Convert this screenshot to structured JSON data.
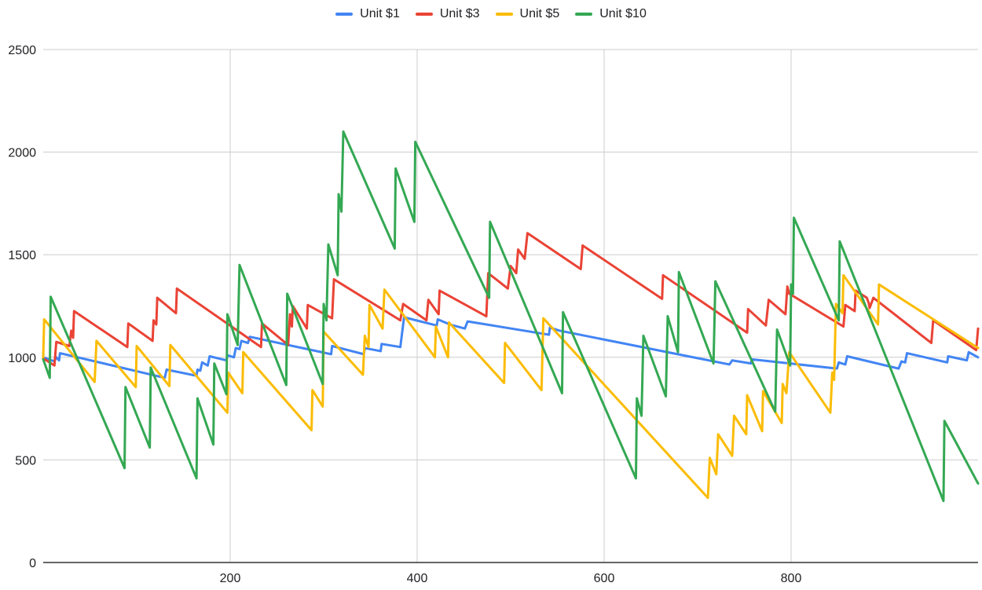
{
  "chart_data": {
    "type": "line",
    "title": "",
    "xlabel": "",
    "ylabel": "",
    "xlim": [
      0,
      1000
    ],
    "ylim": [
      0,
      2500
    ],
    "xticks": [
      200,
      400,
      600,
      800
    ],
    "yticks": [
      0,
      500,
      1000,
      1500,
      2000,
      2500
    ],
    "x_grid": true,
    "y_grid": true,
    "legend_position": "top",
    "series": [
      {
        "name": "Unit $1",
        "color": "#4285F4",
        "points": [
          [
            0,
            1000
          ],
          [
            12,
            980
          ],
          [
            14,
            1000
          ],
          [
            17,
            985
          ],
          [
            18,
            1020
          ],
          [
            130,
            900
          ],
          [
            132,
            940
          ],
          [
            164,
            910
          ],
          [
            165,
            940
          ],
          [
            168,
            935
          ],
          [
            170,
            975
          ],
          [
            176,
            960
          ],
          [
            178,
            1005
          ],
          [
            196,
            985
          ],
          [
            197,
            1010
          ],
          [
            204,
            1000
          ],
          [
            206,
            1045
          ],
          [
            210,
            1040
          ],
          [
            212,
            1080
          ],
          [
            219,
            1070
          ],
          [
            221,
            1100
          ],
          [
            308,
            1015
          ],
          [
            309,
            1055
          ],
          [
            343,
            1015
          ],
          [
            344,
            1045
          ],
          [
            361,
            1030
          ],
          [
            362,
            1065
          ],
          [
            382,
            1050
          ],
          [
            386,
            1195
          ],
          [
            421,
            1155
          ],
          [
            422,
            1185
          ],
          [
            435,
            1160
          ],
          [
            451,
            1140
          ],
          [
            454,
            1175
          ],
          [
            541,
            1110
          ],
          [
            542,
            1145
          ],
          [
            552,
            1130
          ],
          [
            734,
            965
          ],
          [
            737,
            985
          ],
          [
            757,
            970
          ],
          [
            758,
            990
          ],
          [
            849,
            945
          ],
          [
            851,
            975
          ],
          [
            858,
            965
          ],
          [
            860,
            1005
          ],
          [
            915,
            945
          ],
          [
            918,
            980
          ],
          [
            922,
            975
          ],
          [
            924,
            1020
          ],
          [
            967,
            975
          ],
          [
            968,
            1005
          ],
          [
            988,
            985
          ],
          [
            990,
            1025
          ],
          [
            1000,
            1000
          ]
        ]
      },
      {
        "name": "Unit $3",
        "color": "#EA4335",
        "points": [
          [
            0,
            995
          ],
          [
            12,
            960
          ],
          [
            14,
            1075
          ],
          [
            28,
            1055
          ],
          [
            30,
            1130
          ],
          [
            32,
            1095
          ],
          [
            33,
            1225
          ],
          [
            90,
            1050
          ],
          [
            91,
            1165
          ],
          [
            117,
            1080
          ],
          [
            118,
            1180
          ],
          [
            121,
            1160
          ],
          [
            122,
            1290
          ],
          [
            142,
            1215
          ],
          [
            143,
            1335
          ],
          [
            233,
            1050
          ],
          [
            234,
            1165
          ],
          [
            262,
            1060
          ],
          [
            264,
            1210
          ],
          [
            266,
            1150
          ],
          [
            267,
            1250
          ],
          [
            282,
            1140
          ],
          [
            283,
            1255
          ],
          [
            309,
            1190
          ],
          [
            311,
            1380
          ],
          [
            382,
            1180
          ],
          [
            385,
            1260
          ],
          [
            410,
            1180
          ],
          [
            412,
            1280
          ],
          [
            423,
            1210
          ],
          [
            424,
            1325
          ],
          [
            474,
            1200
          ],
          [
            476,
            1410
          ],
          [
            497,
            1335
          ],
          [
            500,
            1445
          ],
          [
            506,
            1410
          ],
          [
            508,
            1525
          ],
          [
            515,
            1480
          ],
          [
            518,
            1605
          ],
          [
            575,
            1430
          ],
          [
            577,
            1545
          ],
          [
            662,
            1285
          ],
          [
            663,
            1400
          ],
          [
            753,
            1120
          ],
          [
            754,
            1235
          ],
          [
            773,
            1155
          ],
          [
            776,
            1280
          ],
          [
            794,
            1210
          ],
          [
            796,
            1345
          ],
          [
            798,
            1310
          ],
          [
            856,
            1150
          ],
          [
            858,
            1255
          ],
          [
            868,
            1225
          ],
          [
            869,
            1325
          ],
          [
            881,
            1290
          ],
          [
            883,
            1265
          ],
          [
            884,
            1240
          ],
          [
            888,
            1290
          ],
          [
            950,
            1070
          ],
          [
            952,
            1180
          ],
          [
            998,
            1035
          ],
          [
            1000,
            1140
          ]
        ]
      },
      {
        "name": "Unit $5",
        "color": "#FBBC04",
        "points": [
          [
            0,
            1000
          ],
          [
            1,
            1185
          ],
          [
            55,
            880
          ],
          [
            57,
            1080
          ],
          [
            99,
            855
          ],
          [
            100,
            1055
          ],
          [
            135,
            860
          ],
          [
            136,
            1060
          ],
          [
            197,
            730
          ],
          [
            198,
            925
          ],
          [
            213,
            825
          ],
          [
            214,
            1025
          ],
          [
            287,
            645
          ],
          [
            288,
            840
          ],
          [
            299,
            760
          ],
          [
            300,
            1125
          ],
          [
            342,
            915
          ],
          [
            344,
            1105
          ],
          [
            348,
            1050
          ],
          [
            349,
            1255
          ],
          [
            363,
            1140
          ],
          [
            365,
            1330
          ],
          [
            419,
            1000
          ],
          [
            420,
            1150
          ],
          [
            433,
            1000
          ],
          [
            434,
            1170
          ],
          [
            493,
            875
          ],
          [
            494,
            1070
          ],
          [
            533,
            840
          ],
          [
            535,
            1190
          ],
          [
            711,
            315
          ],
          [
            713,
            510
          ],
          [
            720,
            430
          ],
          [
            722,
            625
          ],
          [
            737,
            520
          ],
          [
            739,
            715
          ],
          [
            752,
            625
          ],
          [
            753,
            815
          ],
          [
            769,
            640
          ],
          [
            770,
            835
          ],
          [
            790,
            680
          ],
          [
            791,
            870
          ],
          [
            795,
            825
          ],
          [
            798,
            1025
          ],
          [
            842,
            730
          ],
          [
            844,
            925
          ],
          [
            846,
            890
          ],
          [
            848,
            1260
          ],
          [
            855,
            1215
          ],
          [
            856,
            1400
          ],
          [
            893,
            1160
          ],
          [
            894,
            1355
          ],
          [
            1000,
            1045
          ]
        ]
      },
      {
        "name": "Unit $10",
        "color": "#34A853",
        "points": [
          [
            0,
            990
          ],
          [
            7,
            900
          ],
          [
            8,
            1295
          ],
          [
            87,
            460
          ],
          [
            88,
            855
          ],
          [
            114,
            560
          ],
          [
            115,
            950
          ],
          [
            164,
            410
          ],
          [
            165,
            800
          ],
          [
            182,
            575
          ],
          [
            183,
            970
          ],
          [
            196,
            820
          ],
          [
            197,
            1210
          ],
          [
            208,
            1060
          ],
          [
            210,
            1450
          ],
          [
            260,
            865
          ],
          [
            261,
            1310
          ],
          [
            299,
            870
          ],
          [
            300,
            1260
          ],
          [
            303,
            1180
          ],
          [
            305,
            1550
          ],
          [
            315,
            1400
          ],
          [
            316,
            1795
          ],
          [
            319,
            1710
          ],
          [
            321,
            2100
          ],
          [
            376,
            1530
          ],
          [
            377,
            1920
          ],
          [
            397,
            1660
          ],
          [
            398,
            2050
          ],
          [
            477,
            1290
          ],
          [
            478,
            1660
          ],
          [
            555,
            825
          ],
          [
            556,
            1220
          ],
          [
            634,
            410
          ],
          [
            635,
            800
          ],
          [
            640,
            715
          ],
          [
            642,
            1105
          ],
          [
            666,
            810
          ],
          [
            668,
            1200
          ],
          [
            679,
            1025
          ],
          [
            680,
            1415
          ],
          [
            717,
            970
          ],
          [
            719,
            1370
          ],
          [
            783,
            735
          ],
          [
            785,
            1135
          ],
          [
            799,
            960
          ],
          [
            800,
            1355
          ],
          [
            802,
            1310
          ],
          [
            803,
            1680
          ],
          [
            851,
            1180
          ],
          [
            852,
            1565
          ],
          [
            963,
            300
          ],
          [
            964,
            690
          ],
          [
            1000,
            385
          ]
        ]
      }
    ]
  }
}
